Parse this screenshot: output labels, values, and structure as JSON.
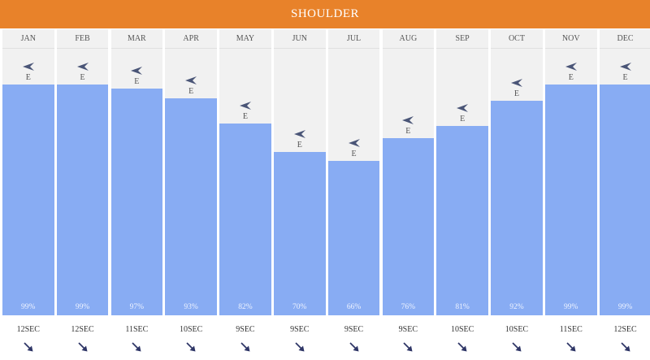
{
  "title": "SHOULDER",
  "colors": {
    "banner": "#e8822a",
    "bar": "#88acf3",
    "column_bg": "#f1f1f1",
    "wind_icon": "#4a5577",
    "swell_arrow": "#2e3566"
  },
  "chart_data": {
    "type": "bar",
    "categories": [
      "JAN",
      "FEB",
      "MAR",
      "APR",
      "MAY",
      "JUN",
      "JUL",
      "AUG",
      "SEP",
      "OCT",
      "NOV",
      "DEC"
    ],
    "values": [
      99,
      99,
      97,
      93,
      82,
      70,
      66,
      76,
      81,
      92,
      99,
      99
    ],
    "value_labels": [
      "99%",
      "99%",
      "97%",
      "93%",
      "82%",
      "70%",
      "66%",
      "76%",
      "81%",
      "92%",
      "99%",
      "99%"
    ],
    "ylim": [
      0,
      100
    ],
    "wind_direction": [
      "E",
      "E",
      "E",
      "E",
      "E",
      "E",
      "E",
      "E",
      "E",
      "E",
      "E",
      "E"
    ],
    "wind_icon": "wind-arrow-icon",
    "swell_period": [
      "12SEC",
      "12SEC",
      "11SEC",
      "10SEC",
      "9SEC",
      "9SEC",
      "9SEC",
      "9SEC",
      "10SEC",
      "10SEC",
      "11SEC",
      "12SEC"
    ],
    "swell_icon": "swell-direction-arrow-icon",
    "grid": false
  }
}
